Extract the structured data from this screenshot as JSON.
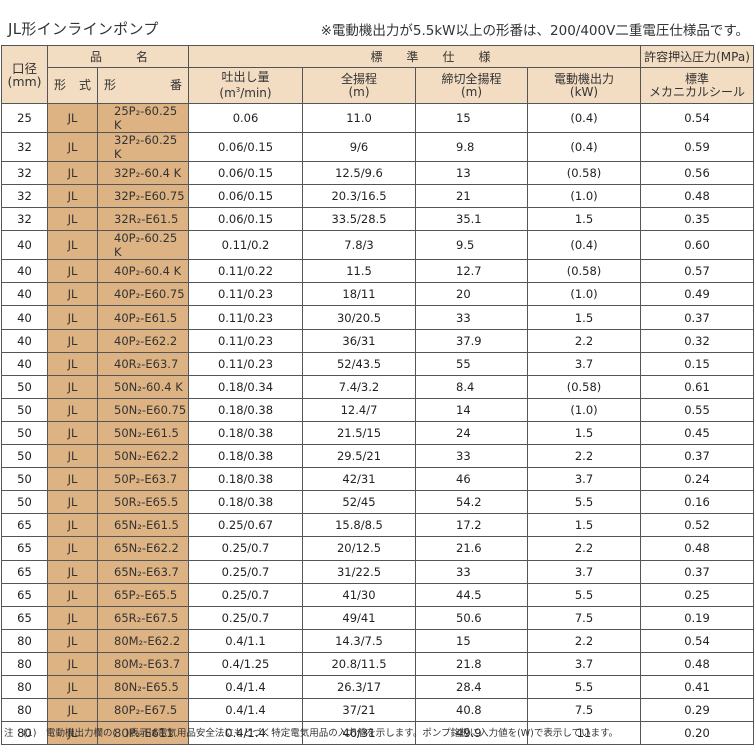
{
  "title": "JL形インラインポンプ",
  "top_note": "※電動機出力が5.5kW以上の形番は、200/400V二重電圧仕様品です。",
  "header": {
    "bore": "口径\n(mm)",
    "bore_line1": "口径",
    "bore_line2": "(mm)",
    "product_name_left": "品",
    "product_name_right": "名",
    "spec_group": "標　　準　　仕　　様",
    "pressure_group": "許容押込圧力(MPa)",
    "type_left": "形",
    "type_right": "式",
    "model_left": "形",
    "model_right": "番",
    "flow_line1": "吐出し量",
    "flow_line2_pre": "(m",
    "flow_line2_sup": "3",
    "flow_line2_post": "/min)",
    "head_line1": "全揚程",
    "head_line2": "(m)",
    "shutoff_line1": "締切全揚程",
    "shutoff_line2": "(m)",
    "motor_line1": "電動機出力",
    "motor_line2": "(kW)",
    "seal_line1": "標準",
    "seal_line2": "メカニカルシール"
  },
  "rows": [
    {
      "bore": "25",
      "type": "JL",
      "model": "25P₂-60.25 K",
      "flow": "0.06",
      "head": "11.0",
      "shutoff": "15",
      "motor": "(0.4)",
      "pressure": "0.54"
    },
    {
      "bore": "32",
      "type": "JL",
      "model": "32P₂-60.25 K",
      "flow": "0.06/0.15",
      "head": "9/6",
      "shutoff": "9.8",
      "motor": "(0.4)",
      "pressure": "0.59"
    },
    {
      "bore": "32",
      "type": "JL",
      "model": "32P₂-60.4 K",
      "flow": "0.06/0.15",
      "head": "12.5/9.6",
      "shutoff": "13",
      "motor": "(0.58)",
      "pressure": "0.56"
    },
    {
      "bore": "32",
      "type": "JL",
      "model": "32P₂-E60.75",
      "flow": "0.06/0.15",
      "head": "20.3/16.5",
      "shutoff": "21",
      "motor": "(1.0)",
      "pressure": "0.48"
    },
    {
      "bore": "32",
      "type": "JL",
      "model": "32R₂-E61.5",
      "flow": "0.06/0.15",
      "head": "33.5/28.5",
      "shutoff": "35.1",
      "motor": "1.5",
      "pressure": "0.35"
    },
    {
      "bore": "40",
      "type": "JL",
      "model": "40P₂-60.25 K",
      "flow": "0.11/0.2",
      "head": "7.8/3",
      "shutoff": "9.5",
      "motor": "(0.4)",
      "pressure": "0.60"
    },
    {
      "bore": "40",
      "type": "JL",
      "model": "40P₂-60.4 K",
      "flow": "0.11/0.22",
      "head": "11.5",
      "shutoff": "12.7",
      "motor": "(0.58)",
      "pressure": "0.57"
    },
    {
      "bore": "40",
      "type": "JL",
      "model": "40P₂-E60.75",
      "flow": "0.11/0.23",
      "head": "18/11",
      "shutoff": "20",
      "motor": "(1.0)",
      "pressure": "0.49"
    },
    {
      "bore": "40",
      "type": "JL",
      "model": "40P₂-E61.5",
      "flow": "0.11/0.23",
      "head": "30/20.5",
      "shutoff": "33",
      "motor": "1.5",
      "pressure": "0.37"
    },
    {
      "bore": "40",
      "type": "JL",
      "model": "40P₂-E62.2",
      "flow": "0.11/0.23",
      "head": "36/31",
      "shutoff": "37.9",
      "motor": "2.2",
      "pressure": "0.32"
    },
    {
      "bore": "40",
      "type": "JL",
      "model": "40R₂-E63.7",
      "flow": "0.11/0.23",
      "head": "52/43.5",
      "shutoff": "55",
      "motor": "3.7",
      "pressure": "0.15"
    },
    {
      "bore": "50",
      "type": "JL",
      "model": "50N₂-60.4 K",
      "flow": "0.18/0.34",
      "head": "7.4/3.2",
      "shutoff": "8.4",
      "motor": "(0.58)",
      "pressure": "0.61"
    },
    {
      "bore": "50",
      "type": "JL",
      "model": "50N₂-E60.75",
      "flow": "0.18/0.38",
      "head": "12.4/7",
      "shutoff": "14",
      "motor": "(1.0)",
      "pressure": "0.55"
    },
    {
      "bore": "50",
      "type": "JL",
      "model": "50N₂-E61.5",
      "flow": "0.18/0.38",
      "head": "21.5/15",
      "shutoff": "24",
      "motor": "1.5",
      "pressure": "0.45"
    },
    {
      "bore": "50",
      "type": "JL",
      "model": "50N₂-E62.2",
      "flow": "0.18/0.38",
      "head": "29.5/21",
      "shutoff": "33",
      "motor": "2.2",
      "pressure": "0.37"
    },
    {
      "bore": "50",
      "type": "JL",
      "model": "50P₂-E63.7",
      "flow": "0.18/0.38",
      "head": "42/31",
      "shutoff": "46",
      "motor": "3.7",
      "pressure": "0.24"
    },
    {
      "bore": "50",
      "type": "JL",
      "model": "50R₂-E65.5",
      "flow": "0.18/0.38",
      "head": "52/45",
      "shutoff": "54.2",
      "motor": "5.5",
      "pressure": "0.16"
    },
    {
      "bore": "65",
      "type": "JL",
      "model": "65N₂-E61.5",
      "flow": "0.25/0.67",
      "head": "15.8/8.5",
      "shutoff": "17.2",
      "motor": "1.5",
      "pressure": "0.52"
    },
    {
      "bore": "65",
      "type": "JL",
      "model": "65N₂-E62.2",
      "flow": "0.25/0.7",
      "head": "20/12.5",
      "shutoff": "21.6",
      "motor": "2.2",
      "pressure": "0.48"
    },
    {
      "bore": "65",
      "type": "JL",
      "model": "65N₂-E63.7",
      "flow": "0.25/0.7",
      "head": "31/22.5",
      "shutoff": "33",
      "motor": "3.7",
      "pressure": "0.37"
    },
    {
      "bore": "65",
      "type": "JL",
      "model": "65P₂-E65.5",
      "flow": "0.25/0.7",
      "head": "41/30",
      "shutoff": "44.5",
      "motor": "5.5",
      "pressure": "0.25"
    },
    {
      "bore": "65",
      "type": "JL",
      "model": "65R₂-E67.5",
      "flow": "0.25/0.7",
      "head": "49/41",
      "shutoff": "50.6",
      "motor": "7.5",
      "pressure": "0.19"
    },
    {
      "bore": "80",
      "type": "JL",
      "model": "80M₂-E62.2",
      "flow": "0.4/1.1",
      "head": "14.3/7.5",
      "shutoff": "15",
      "motor": "2.2",
      "pressure": "0.54"
    },
    {
      "bore": "80",
      "type": "JL",
      "model": "80M₂-E63.7",
      "flow": "0.4/1.25",
      "head": "20.8/11.5",
      "shutoff": "21.8",
      "motor": "3.7",
      "pressure": "0.48"
    },
    {
      "bore": "80",
      "type": "JL",
      "model": "80N₂-E65.5",
      "flow": "0.4/1.4",
      "head": "26.3/17",
      "shutoff": "28.4",
      "motor": "5.5",
      "pressure": "0.41"
    },
    {
      "bore": "80",
      "type": "JL",
      "model": "80P₂-E67.5",
      "flow": "0.4/1.4",
      "head": "37/21",
      "shutoff": "40.8",
      "motor": "7.5",
      "pressure": "0.29"
    },
    {
      "bore": "80",
      "type": "JL",
      "model": "80P₂-E611",
      "flow": "0.4/1.4",
      "head": "46/31",
      "shutoff": "49.9",
      "motor": "11",
      "pressure": "0.20"
    }
  ],
  "footnote": "注　(1)　電動機出力欄の(　)表示は電気用品安全法にもとづく特定電気用品の入力値を示します。ポンプ銘板に入力値を(W)で表示しています。",
  "colors": {
    "header_bg": "#f3ddc2",
    "model_col_bg": "#deb383",
    "border": "#555555"
  }
}
